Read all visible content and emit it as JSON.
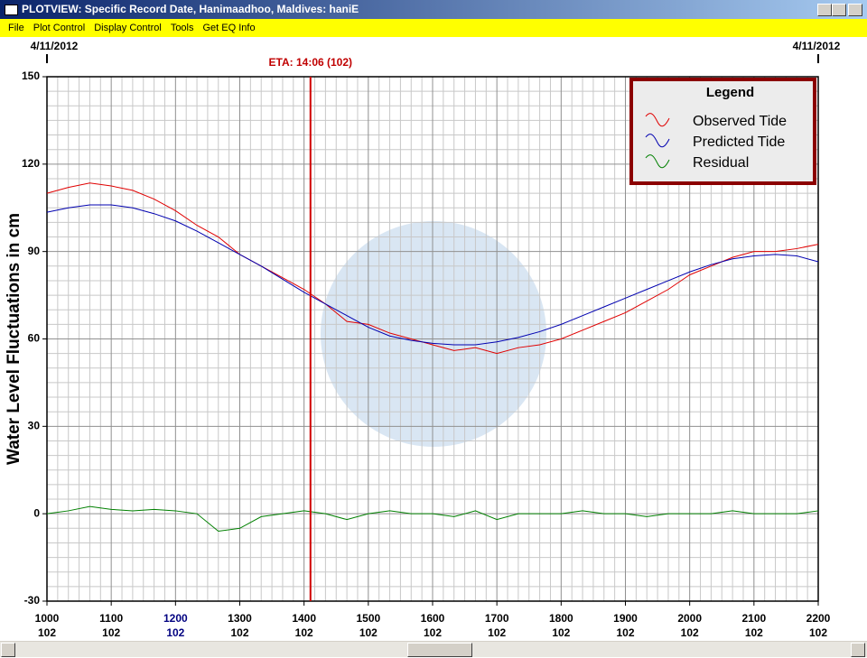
{
  "window": {
    "title": "PLOTVIEW: Specific Record Date, Hanimaadhoo, Maldives: haniE",
    "menu": [
      "File",
      "Plot Control",
      "Display Control",
      "Tools",
      "Get EQ Info"
    ]
  },
  "chart_data": {
    "type": "line",
    "y_label": "Water Level Fluctuations in cm",
    "dates": [
      "4/11/2012",
      "4/11/2012"
    ],
    "eta": {
      "x": 1406,
      "label": "ETA: 14:06 (102)"
    },
    "x": [
      1000,
      1020,
      1040,
      1100,
      1120,
      1140,
      1200,
      1220,
      1240,
      1300,
      1320,
      1340,
      1400,
      1420,
      1440,
      1500,
      1520,
      1540,
      1600,
      1620,
      1640,
      1700,
      1720,
      1740,
      1800,
      1820,
      1840,
      1900,
      1920,
      1940,
      2000,
      2020,
      2040,
      2100,
      2120,
      2140,
      2200
    ],
    "series": [
      {
        "name": "Observed Tide",
        "color": "#e00000",
        "values": [
          110,
          112,
          113.5,
          112.5,
          111,
          108,
          104,
          99,
          95,
          89,
          85,
          81,
          77,
          72,
          66,
          65,
          62,
          60,
          58,
          56,
          57,
          55,
          57,
          58,
          60,
          63,
          66,
          69,
          73,
          77,
          82,
          85,
          88,
          90,
          90,
          91,
          92.5
        ]
      },
      {
        "name": "Predicted Tide",
        "color": "#0000b0",
        "values": [
          103.5,
          105,
          106,
          106,
          105,
          103,
          100.5,
          97,
          93,
          89,
          85,
          80.5,
          76,
          72,
          68,
          64,
          61,
          59.5,
          58.5,
          58,
          58,
          59,
          60.5,
          62.5,
          65,
          68,
          71,
          74,
          77,
          80,
          83,
          85.5,
          87.5,
          88.5,
          89,
          88.5,
          86.5
        ]
      },
      {
        "name": "Residual",
        "color": "#008000",
        "values": [
          0,
          1,
          2.5,
          1.5,
          1,
          1.5,
          1,
          0,
          -6,
          -5,
          -1,
          0,
          1,
          0,
          -2,
          0,
          1,
          0,
          0,
          -1,
          1,
          -2,
          0,
          0,
          0,
          1,
          0,
          0,
          -1,
          0,
          0,
          0,
          1,
          0,
          0,
          0,
          1
        ]
      }
    ],
    "legend_title": "Legend",
    "legend": "upper right",
    "xlim": [
      1000,
      2200
    ],
    "xticks": [
      1000,
      1100,
      1200,
      1300,
      1400,
      1500,
      1600,
      1700,
      1800,
      1900,
      2000,
      2100,
      2200
    ],
    "xtick_sublabels": [
      "102",
      "102",
      "102",
      "102",
      "102",
      "102",
      "102",
      "102",
      "102",
      "102",
      "102",
      "102",
      "102"
    ],
    "highlight_xtick": 1200,
    "ylim": [
      -30,
      150
    ],
    "yticks": [
      -30,
      0,
      30,
      60,
      90,
      120,
      150
    ],
    "grid": true
  }
}
